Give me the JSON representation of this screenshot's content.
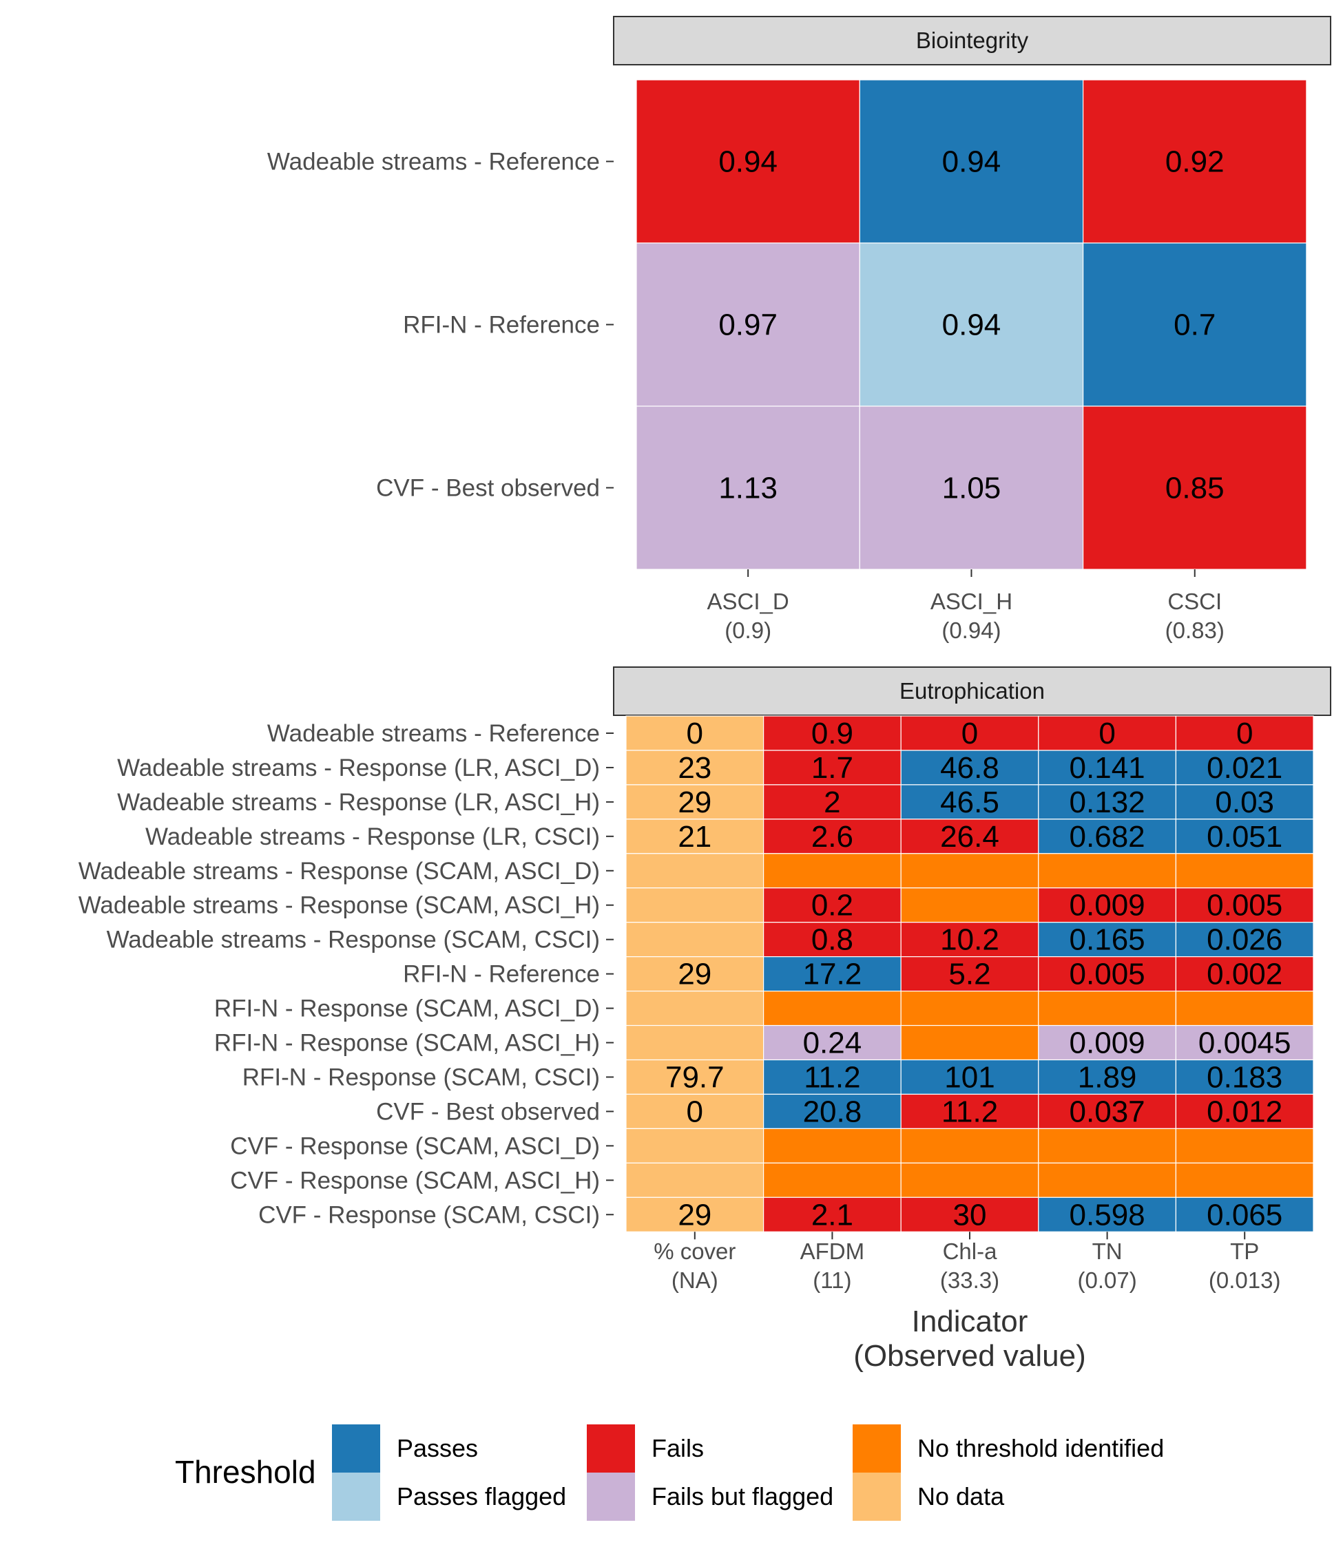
{
  "chart_data": [
    {
      "type": "heatmap",
      "panel": "Biointegrity",
      "rows": [
        "Wadeable streams - Reference",
        "RFI-N - Reference",
        "CVF - Best observed"
      ],
      "columns": [
        {
          "name": "ASCI_D",
          "sub": "(0.9)"
        },
        {
          "name": "ASCI_H",
          "sub": "(0.94)"
        },
        {
          "name": "CSCI",
          "sub": "(0.83)"
        }
      ],
      "cells": [
        [
          {
            "v": "0.94",
            "s": "fails"
          },
          {
            "v": "0.94",
            "s": "passes"
          },
          {
            "v": "0.92",
            "s": "fails"
          }
        ],
        [
          {
            "v": "0.97",
            "s": "fails_flagged"
          },
          {
            "v": "0.94",
            "s": "passes_flagged"
          },
          {
            "v": "0.7",
            "s": "passes"
          }
        ],
        [
          {
            "v": "1.13",
            "s": "fails_flagged"
          },
          {
            "v": "1.05",
            "s": "fails_flagged"
          },
          {
            "v": "0.85",
            "s": "fails"
          }
        ]
      ]
    },
    {
      "type": "heatmap",
      "panel": "Eutrophication",
      "xlabel_lines": [
        "Indicator",
        "(Observed value)"
      ],
      "rows": [
        "Wadeable streams - Reference",
        "Wadeable streams - Response (LR, ASCI_D)",
        "Wadeable streams - Response (LR, ASCI_H)",
        "Wadeable streams - Response (LR, CSCI)",
        "Wadeable streams - Response (SCAM, ASCI_D)",
        "Wadeable streams - Response (SCAM, ASCI_H)",
        "Wadeable streams - Response (SCAM, CSCI)",
        "RFI-N - Reference",
        "RFI-N - Response (SCAM, ASCI_D)",
        "RFI-N - Response (SCAM, ASCI_H)",
        "RFI-N - Response (SCAM, CSCI)",
        "CVF - Best observed",
        "CVF - Response (SCAM, ASCI_D)",
        "CVF - Response (SCAM, ASCI_H)",
        "CVF - Response (SCAM, CSCI)"
      ],
      "columns": [
        {
          "name": "% cover",
          "sub": "(NA)"
        },
        {
          "name": "AFDM",
          "sub": "(11)"
        },
        {
          "name": "Chl-a",
          "sub": "(33.3)"
        },
        {
          "name": "TN",
          "sub": "(0.07)"
        },
        {
          "name": "TP",
          "sub": "(0.013)"
        }
      ],
      "cells": [
        [
          {
            "v": "0",
            "s": "no_data"
          },
          {
            "v": "0.9",
            "s": "fails"
          },
          {
            "v": "0",
            "s": "fails"
          },
          {
            "v": "0",
            "s": "fails"
          },
          {
            "v": "0",
            "s": "fails"
          }
        ],
        [
          {
            "v": "23",
            "s": "no_data"
          },
          {
            "v": "1.7",
            "s": "fails"
          },
          {
            "v": "46.8",
            "s": "passes"
          },
          {
            "v": "0.141",
            "s": "passes"
          },
          {
            "v": "0.021",
            "s": "passes"
          }
        ],
        [
          {
            "v": "29",
            "s": "no_data"
          },
          {
            "v": "2",
            "s": "fails"
          },
          {
            "v": "46.5",
            "s": "passes"
          },
          {
            "v": "0.132",
            "s": "passes"
          },
          {
            "v": "0.03",
            "s": "passes"
          }
        ],
        [
          {
            "v": "21",
            "s": "no_data"
          },
          {
            "v": "2.6",
            "s": "fails"
          },
          {
            "v": "26.4",
            "s": "fails"
          },
          {
            "v": "0.682",
            "s": "passes"
          },
          {
            "v": "0.051",
            "s": "passes"
          }
        ],
        [
          {
            "v": "",
            "s": "no_data"
          },
          {
            "v": "",
            "s": "no_threshold"
          },
          {
            "v": "",
            "s": "no_threshold"
          },
          {
            "v": "",
            "s": "no_threshold"
          },
          {
            "v": "",
            "s": "no_threshold"
          }
        ],
        [
          {
            "v": "",
            "s": "no_data"
          },
          {
            "v": "0.2",
            "s": "fails"
          },
          {
            "v": "",
            "s": "no_threshold"
          },
          {
            "v": "0.009",
            "s": "fails"
          },
          {
            "v": "0.005",
            "s": "fails"
          }
        ],
        [
          {
            "v": "",
            "s": "no_data"
          },
          {
            "v": "0.8",
            "s": "fails"
          },
          {
            "v": "10.2",
            "s": "fails"
          },
          {
            "v": "0.165",
            "s": "passes"
          },
          {
            "v": "0.026",
            "s": "passes"
          }
        ],
        [
          {
            "v": "29",
            "s": "no_data"
          },
          {
            "v": "17.2",
            "s": "passes"
          },
          {
            "v": "5.2",
            "s": "fails"
          },
          {
            "v": "0.005",
            "s": "fails"
          },
          {
            "v": "0.002",
            "s": "fails"
          }
        ],
        [
          {
            "v": "",
            "s": "no_data"
          },
          {
            "v": "",
            "s": "no_threshold"
          },
          {
            "v": "",
            "s": "no_threshold"
          },
          {
            "v": "",
            "s": "no_threshold"
          },
          {
            "v": "",
            "s": "no_threshold"
          }
        ],
        [
          {
            "v": "",
            "s": "no_data"
          },
          {
            "v": "0.24",
            "s": "fails_flagged"
          },
          {
            "v": "",
            "s": "no_threshold"
          },
          {
            "v": "0.009",
            "s": "fails_flagged"
          },
          {
            "v": "0.0045",
            "s": "fails_flagged"
          }
        ],
        [
          {
            "v": "79.7",
            "s": "no_data"
          },
          {
            "v": "11.2",
            "s": "passes"
          },
          {
            "v": "101",
            "s": "passes"
          },
          {
            "v": "1.89",
            "s": "passes"
          },
          {
            "v": "0.183",
            "s": "passes"
          }
        ],
        [
          {
            "v": "0",
            "s": "no_data"
          },
          {
            "v": "20.8",
            "s": "passes"
          },
          {
            "v": "11.2",
            "s": "fails"
          },
          {
            "v": "0.037",
            "s": "fails"
          },
          {
            "v": "0.012",
            "s": "fails"
          }
        ],
        [
          {
            "v": "",
            "s": "no_data"
          },
          {
            "v": "",
            "s": "no_threshold"
          },
          {
            "v": "",
            "s": "no_threshold"
          },
          {
            "v": "",
            "s": "no_threshold"
          },
          {
            "v": "",
            "s": "no_threshold"
          }
        ],
        [
          {
            "v": "",
            "s": "no_data"
          },
          {
            "v": "",
            "s": "no_threshold"
          },
          {
            "v": "",
            "s": "no_threshold"
          },
          {
            "v": "",
            "s": "no_threshold"
          },
          {
            "v": "",
            "s": "no_threshold"
          }
        ],
        [
          {
            "v": "29",
            "s": "no_data"
          },
          {
            "v": "2.1",
            "s": "fails"
          },
          {
            "v": "30",
            "s": "fails"
          },
          {
            "v": "0.598",
            "s": "passes"
          },
          {
            "v": "0.065",
            "s": "passes"
          }
        ]
      ]
    }
  ],
  "legend": {
    "title": "Threshold",
    "placement": "bottom",
    "items": [
      {
        "key": "passes",
        "label": "Passes",
        "color": "#1F78B4"
      },
      {
        "key": "passes_flagged",
        "label": "Passes flagged",
        "color": "#A6CEE3"
      },
      {
        "key": "fails",
        "label": "Fails",
        "color": "#E31A1C"
      },
      {
        "key": "fails_flagged",
        "label": "Fails but flagged",
        "color": "#CAB2D6"
      },
      {
        "key": "no_threshold",
        "label": "No threshold identified",
        "color": "#FF7F00"
      },
      {
        "key": "no_data",
        "label": "No data",
        "color": "#FDBF6F"
      }
    ]
  }
}
